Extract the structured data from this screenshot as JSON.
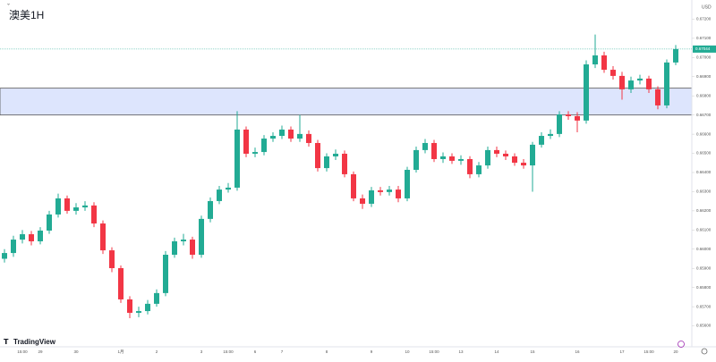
{
  "chart_data": {
    "type": "candlestick",
    "title": "澳美1H",
    "currency": "USD",
    "brand": "TradingView",
    "up_color": "#22ab94",
    "down_color": "#f23645",
    "zone_color": "#dde5fd",
    "zone": [
      0.667,
      0.6684
    ],
    "last_price": "0.67044",
    "ylim": [
      0.655,
      0.673
    ],
    "yticks": [
      {
        "value": 0.656,
        "label": "0.65600"
      },
      {
        "value": 0.657,
        "label": "0.65700"
      },
      {
        "value": 0.658,
        "label": "0.65800"
      },
      {
        "value": 0.659,
        "label": "0.65900"
      },
      {
        "value": 0.66,
        "label": "0.66000"
      },
      {
        "value": 0.661,
        "label": "0.66100"
      },
      {
        "value": 0.662,
        "label": "0.66200"
      },
      {
        "value": 0.663,
        "label": "0.66300"
      },
      {
        "value": 0.664,
        "label": "0.66400"
      },
      {
        "value": 0.665,
        "label": "0.66500"
      },
      {
        "value": 0.666,
        "label": "0.66600"
      },
      {
        "value": 0.667,
        "label": "0.66700"
      },
      {
        "value": 0.668,
        "label": "0.66800"
      },
      {
        "value": 0.669,
        "label": "0.66900"
      },
      {
        "value": 0.67,
        "label": "0.67000"
      },
      {
        "value": 0.671,
        "label": "0.67100"
      },
      {
        "value": 0.672,
        "label": "0.67200"
      }
    ],
    "categories": [
      null,
      null,
      "15:00",
      null,
      "29",
      null,
      null,
      null,
      "30",
      null,
      null,
      null,
      null,
      "1月",
      null,
      null,
      null,
      "2",
      null,
      null,
      null,
      null,
      "3",
      null,
      null,
      "15:00",
      null,
      null,
      "6",
      null,
      null,
      "7",
      null,
      null,
      null,
      null,
      "8",
      null,
      null,
      null,
      null,
      "9",
      null,
      null,
      null,
      "10",
      null,
      null,
      "15:00",
      null,
      null,
      "13",
      null,
      null,
      null,
      "14",
      null,
      null,
      null,
      "15",
      null,
      null,
      null,
      null,
      "16",
      null,
      null,
      null,
      null,
      "17",
      null,
      null,
      "15:00",
      null,
      null,
      "20"
    ],
    "ohlc": [
      [
        0.6595,
        0.66,
        0.6593,
        0.6598
      ],
      [
        0.6598,
        0.6607,
        0.6596,
        0.6605
      ],
      [
        0.6605,
        0.661,
        0.6603,
        0.66078
      ],
      [
        0.66078,
        0.66095,
        0.6602,
        0.66041
      ],
      [
        0.66041,
        0.66115,
        0.66025,
        0.66097
      ],
      [
        0.66097,
        0.662,
        0.6608,
        0.66181
      ],
      [
        0.66181,
        0.6629,
        0.66165,
        0.66265
      ],
      [
        0.66265,
        0.6628,
        0.66185,
        0.662
      ],
      [
        0.662,
        0.6624,
        0.6618,
        0.66218
      ],
      [
        0.66218,
        0.6625,
        0.662,
        0.66228
      ],
      [
        0.66228,
        0.66245,
        0.66115,
        0.66134
      ],
      [
        0.66134,
        0.6615,
        0.65975,
        0.65994
      ],
      [
        0.65994,
        0.6601,
        0.6588,
        0.65901
      ],
      [
        0.65901,
        0.65915,
        0.6572,
        0.65738
      ],
      [
        0.65738,
        0.65755,
        0.6564,
        0.65668
      ],
      [
        0.65668,
        0.657,
        0.65645,
        0.65677
      ],
      [
        0.65677,
        0.65735,
        0.6566,
        0.65715
      ],
      [
        0.65715,
        0.6579,
        0.657,
        0.65771
      ],
      [
        0.65771,
        0.6599,
        0.65755,
        0.65971
      ],
      [
        0.65971,
        0.6606,
        0.65955,
        0.66041
      ],
      [
        0.66041,
        0.6608,
        0.6602,
        0.6605
      ],
      [
        0.6605,
        0.66065,
        0.6595,
        0.65971
      ],
      [
        0.65971,
        0.66175,
        0.65955,
        0.66158
      ],
      [
        0.66158,
        0.6627,
        0.6614,
        0.66251
      ],
      [
        0.66251,
        0.6633,
        0.66235,
        0.66311
      ],
      [
        0.66311,
        0.66345,
        0.66295,
        0.66321
      ],
      [
        0.66321,
        0.6672,
        0.66305,
        0.66624
      ],
      [
        0.66624,
        0.6664,
        0.6648,
        0.66498
      ],
      [
        0.66498,
        0.6653,
        0.6648,
        0.66507
      ],
      [
        0.66507,
        0.66595,
        0.6649,
        0.66577
      ],
      [
        0.66577,
        0.6661,
        0.6656,
        0.66591
      ],
      [
        0.66591,
        0.66645,
        0.66575,
        0.66624
      ],
      [
        0.66624,
        0.6664,
        0.6656,
        0.66577
      ],
      [
        0.66577,
        0.667,
        0.6656,
        0.66601
      ],
      [
        0.66601,
        0.6662,
        0.66535,
        0.66554
      ],
      [
        0.66554,
        0.6657,
        0.66405,
        0.66423
      ],
      [
        0.66423,
        0.665,
        0.66405,
        0.66484
      ],
      [
        0.66484,
        0.6652,
        0.66465,
        0.66498
      ],
      [
        0.66498,
        0.66515,
        0.66375,
        0.66391
      ],
      [
        0.66391,
        0.66405,
        0.6625,
        0.66265
      ],
      [
        0.66265,
        0.66285,
        0.6621,
        0.66237
      ],
      [
        0.66237,
        0.66325,
        0.6622,
        0.66307
      ],
      [
        0.66307,
        0.66325,
        0.6628,
        0.66298
      ],
      [
        0.66298,
        0.6633,
        0.6628,
        0.66311
      ],
      [
        0.66311,
        0.6633,
        0.66245,
        0.66265
      ],
      [
        0.66265,
        0.6643,
        0.6625,
        0.66414
      ],
      [
        0.66414,
        0.66535,
        0.664,
        0.66517
      ],
      [
        0.66517,
        0.66575,
        0.665,
        0.66554
      ],
      [
        0.66554,
        0.6657,
        0.66455,
        0.6647
      ],
      [
        0.6647,
        0.66505,
        0.6645,
        0.66484
      ],
      [
        0.66484,
        0.665,
        0.66445,
        0.66461
      ],
      [
        0.66461,
        0.6649,
        0.6644,
        0.6647
      ],
      [
        0.6647,
        0.66485,
        0.6637,
        0.66391
      ],
      [
        0.66391,
        0.66455,
        0.66375,
        0.66437
      ],
      [
        0.66437,
        0.66535,
        0.6642,
        0.66517
      ],
      [
        0.66517,
        0.66535,
        0.6648,
        0.66498
      ],
      [
        0.66498,
        0.66515,
        0.66465,
        0.66484
      ],
      [
        0.66484,
        0.665,
        0.66435,
        0.66451
      ],
      [
        0.66451,
        0.6647,
        0.6642,
        0.66437
      ],
      [
        0.66437,
        0.6656,
        0.663,
        0.66545
      ],
      [
        0.66545,
        0.6661,
        0.6653,
        0.66591
      ],
      [
        0.66591,
        0.66625,
        0.66575,
        0.66601
      ],
      [
        0.66601,
        0.6672,
        0.66585,
        0.66703
      ],
      [
        0.66703,
        0.6672,
        0.66675,
        0.66694
      ],
      [
        0.66694,
        0.66715,
        0.6661,
        0.66671
      ],
      [
        0.66671,
        0.66985,
        0.66655,
        0.66964
      ],
      [
        0.66964,
        0.6712,
        0.66945,
        0.67011
      ],
      [
        0.67011,
        0.6703,
        0.6692,
        0.66936
      ],
      [
        0.66936,
        0.66955,
        0.66885,
        0.66904
      ],
      [
        0.66904,
        0.66925,
        0.6678,
        0.66834
      ],
      [
        0.66834,
        0.669,
        0.66815,
        0.6688
      ],
      [
        0.6688,
        0.6691,
        0.6686,
        0.6689
      ],
      [
        0.6689,
        0.66905,
        0.66815,
        0.66834
      ],
      [
        0.66834,
        0.6685,
        0.6673,
        0.6675
      ],
      [
        0.6675,
        0.6699,
        0.66735,
        0.66974
      ],
      [
        0.66974,
        0.67065,
        0.6696,
        0.67044
      ]
    ]
  }
}
